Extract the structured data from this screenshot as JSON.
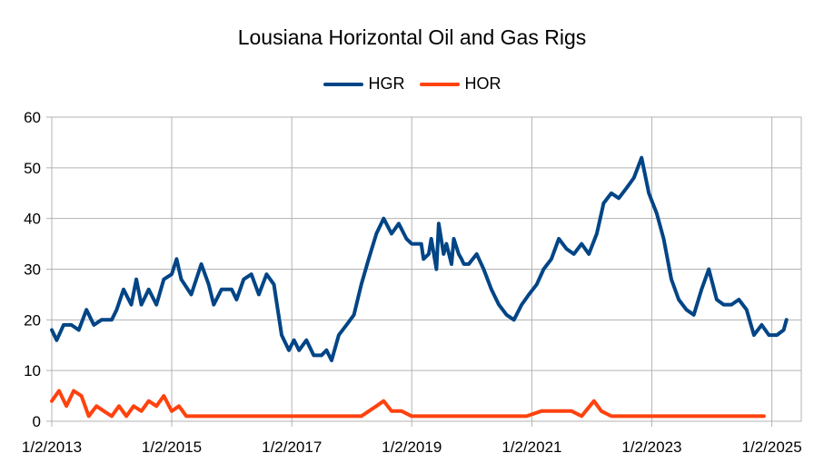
{
  "chart_data": {
    "type": "line",
    "title": "Lousiana Horizontal Oil and Gas Rigs",
    "xlabel": "",
    "ylabel": "",
    "x_tick_labels": [
      "1/2/2013",
      "1/2/2015",
      "1/2/2017",
      "1/2/2019",
      "1/2/2021",
      "1/2/2023",
      "1/2/2025"
    ],
    "y_tick_labels": [
      "0",
      "10",
      "20",
      "30",
      "40",
      "50",
      "60"
    ],
    "xlim": [
      "2013-01-02",
      "2025-06-30"
    ],
    "ylim": [
      0,
      60
    ],
    "grid": true,
    "legend_position": "top-center",
    "series": [
      {
        "name": "HGR",
        "color": "#004586",
        "points": [
          [
            "2013-01-02",
            18
          ],
          [
            "2013-02-01",
            16
          ],
          [
            "2013-03-15",
            19
          ],
          [
            "2013-05-01",
            19
          ],
          [
            "2013-06-15",
            18
          ],
          [
            "2013-08-01",
            22
          ],
          [
            "2013-09-15",
            19
          ],
          [
            "2013-11-01",
            20
          ],
          [
            "2014-01-02",
            20
          ],
          [
            "2014-02-01",
            22
          ],
          [
            "2014-03-15",
            26
          ],
          [
            "2014-05-01",
            23
          ],
          [
            "2014-06-01",
            28
          ],
          [
            "2014-07-01",
            23
          ],
          [
            "2014-08-15",
            26
          ],
          [
            "2014-10-01",
            23
          ],
          [
            "2014-11-15",
            28
          ],
          [
            "2015-01-02",
            29
          ],
          [
            "2015-02-01",
            32
          ],
          [
            "2015-03-01",
            28
          ],
          [
            "2015-05-01",
            25
          ],
          [
            "2015-07-01",
            31
          ],
          [
            "2015-08-15",
            27
          ],
          [
            "2015-09-15",
            23
          ],
          [
            "2015-11-01",
            26
          ],
          [
            "2016-01-02",
            26
          ],
          [
            "2016-02-01",
            24
          ],
          [
            "2016-03-15",
            28
          ],
          [
            "2016-05-01",
            29
          ],
          [
            "2016-06-15",
            25
          ],
          [
            "2016-08-01",
            29
          ],
          [
            "2016-09-15",
            27
          ],
          [
            "2016-11-01",
            17
          ],
          [
            "2016-12-15",
            14
          ],
          [
            "2017-01-15",
            16
          ],
          [
            "2017-02-15",
            14
          ],
          [
            "2017-04-01",
            16
          ],
          [
            "2017-05-15",
            13
          ],
          [
            "2017-07-01",
            13
          ],
          [
            "2017-08-01",
            14
          ],
          [
            "2017-09-01",
            12
          ],
          [
            "2017-10-15",
            17
          ],
          [
            "2017-12-01",
            19
          ],
          [
            "2018-01-15",
            21
          ],
          [
            "2018-03-01",
            27
          ],
          [
            "2018-04-15",
            32
          ],
          [
            "2018-06-01",
            37
          ],
          [
            "2018-07-15",
            40
          ],
          [
            "2018-09-01",
            37
          ],
          [
            "2018-10-15",
            39
          ],
          [
            "2018-12-01",
            36
          ],
          [
            "2019-01-15",
            35
          ],
          [
            "2019-03-01",
            35
          ],
          [
            "2019-04-15",
            33
          ],
          [
            "2019-06-01",
            30
          ],
          [
            "2019-07-15",
            33
          ],
          [
            "2019-09-01",
            31
          ],
          [
            "2019-10-15",
            33
          ],
          [
            "2019-11-15",
            31
          ],
          [
            "2019-01-02",
            35
          ],
          [
            "2019-03-15",
            32
          ],
          [
            "2019-05-01",
            36
          ],
          [
            "2019-06-15",
            39
          ],
          [
            "2019-08-01",
            35
          ],
          [
            "2019-09-15",
            36
          ],
          [
            "2019-11-01",
            32
          ],
          [
            "2019-12-15",
            31
          ],
          [
            "2020-02-01",
            33
          ],
          [
            "2020-03-15",
            30
          ],
          [
            "2020-05-01",
            26
          ],
          [
            "2020-06-15",
            23
          ],
          [
            "2020-08-01",
            21
          ],
          [
            "2020-09-15",
            20
          ],
          [
            "2020-11-01",
            23
          ],
          [
            "2020-12-15",
            25
          ],
          [
            "2021-02-01",
            27
          ],
          [
            "2021-03-15",
            30
          ],
          [
            "2021-05-01",
            32
          ],
          [
            "2021-06-15",
            36
          ],
          [
            "2021-08-01",
            34
          ],
          [
            "2021-09-15",
            33
          ],
          [
            "2021-11-01",
            35
          ],
          [
            "2021-12-15",
            33
          ],
          [
            "2022-02-01",
            37
          ],
          [
            "2022-03-15",
            43
          ],
          [
            "2022-05-01",
            45
          ],
          [
            "2022-06-15",
            44
          ],
          [
            "2022-08-01",
            46
          ],
          [
            "2022-09-15",
            48
          ],
          [
            "2022-11-01",
            52
          ],
          [
            "2022-12-15",
            45
          ],
          [
            "2023-02-01",
            41
          ],
          [
            "2023-03-15",
            36
          ],
          [
            "2023-05-01",
            28
          ],
          [
            "2023-06-15",
            24
          ],
          [
            "2023-08-01",
            22
          ],
          [
            "2023-09-15",
            21
          ],
          [
            "2023-11-01",
            26
          ],
          [
            "2023-12-15",
            30
          ],
          [
            "2024-02-01",
            24
          ],
          [
            "2024-03-15",
            23
          ],
          [
            "2024-05-01",
            23
          ],
          [
            "2024-06-15",
            24
          ],
          [
            "2024-08-01",
            22
          ],
          [
            "2024-09-15",
            17
          ],
          [
            "2024-11-01",
            19
          ],
          [
            "2024-12-15",
            17
          ],
          [
            "2025-02-01",
            17
          ],
          [
            "2025-03-15",
            18
          ],
          [
            "2025-04-01",
            20
          ]
        ]
      },
      {
        "name": "HOR",
        "color": "#ff420e",
        "points": [
          [
            "2013-01-02",
            4
          ],
          [
            "2013-02-15",
            6
          ],
          [
            "2013-04-01",
            3
          ],
          [
            "2013-05-15",
            6
          ],
          [
            "2013-07-01",
            5
          ],
          [
            "2013-08-15",
            1
          ],
          [
            "2013-10-01",
            3
          ],
          [
            "2013-11-15",
            2
          ],
          [
            "2014-01-02",
            1
          ],
          [
            "2014-02-15",
            3
          ],
          [
            "2014-04-01",
            1
          ],
          [
            "2014-05-15",
            3
          ],
          [
            "2014-07-01",
            2
          ],
          [
            "2014-08-15",
            4
          ],
          [
            "2014-10-01",
            3
          ],
          [
            "2014-11-15",
            5
          ],
          [
            "2015-01-02",
            2
          ],
          [
            "2015-02-15",
            3
          ],
          [
            "2015-04-01",
            1
          ],
          [
            "2015-06-01",
            1
          ],
          [
            "2015-09-01",
            1
          ],
          [
            "2015-12-01",
            1
          ],
          [
            "2016-03-01",
            1
          ],
          [
            "2016-06-01",
            1
          ],
          [
            "2016-09-01",
            1
          ],
          [
            "2016-12-01",
            1
          ],
          [
            "2017-03-01",
            1
          ],
          [
            "2017-06-01",
            1
          ],
          [
            "2017-09-01",
            1
          ],
          [
            "2017-12-01",
            1
          ],
          [
            "2018-03-01",
            1
          ],
          [
            "2018-06-01",
            3
          ],
          [
            "2018-07-15",
            4
          ],
          [
            "2018-09-01",
            2
          ],
          [
            "2018-11-01",
            2
          ],
          [
            "2019-01-02",
            1
          ],
          [
            "2019-03-01",
            1
          ],
          [
            "2019-06-01",
            1
          ],
          [
            "2019-09-01",
            1
          ],
          [
            "2019-12-01",
            1
          ],
          [
            "2020-03-01",
            1
          ],
          [
            "2020-06-01",
            1
          ],
          [
            "2020-09-01",
            1
          ],
          [
            "2020-12-01",
            1
          ],
          [
            "2021-03-01",
            2
          ],
          [
            "2021-06-01",
            2
          ],
          [
            "2021-09-01",
            2
          ],
          [
            "2021-11-01",
            1
          ],
          [
            "2022-01-15",
            4
          ],
          [
            "2022-03-01",
            2
          ],
          [
            "2022-05-01",
            1
          ],
          [
            "2022-08-01",
            1
          ],
          [
            "2022-11-01",
            1
          ],
          [
            "2023-02-01",
            1
          ],
          [
            "2023-05-01",
            1
          ],
          [
            "2023-08-01",
            1
          ],
          [
            "2023-11-01",
            1
          ],
          [
            "2024-02-01",
            1
          ],
          [
            "2024-05-01",
            1
          ],
          [
            "2024-08-01",
            1
          ],
          [
            "2024-11-15",
            1
          ]
        ]
      }
    ]
  }
}
